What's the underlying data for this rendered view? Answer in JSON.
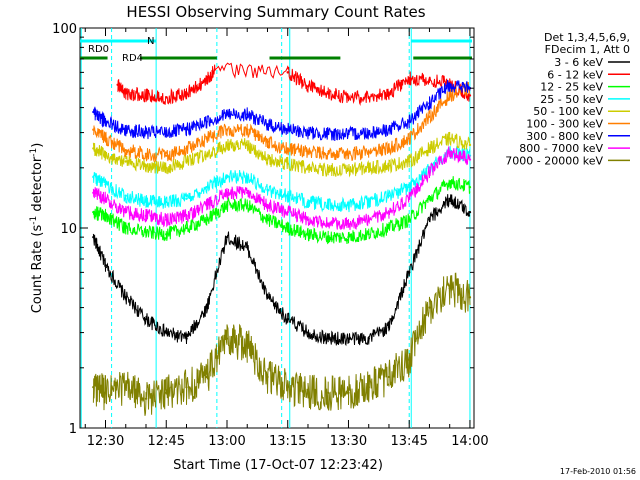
{
  "chart_data": {
    "type": "line",
    "title": "HESSI Observing Summary Count Rates",
    "xlabel": "Start Time (17-Oct-07 12:23:42)",
    "ylabel_main": "Count Rate (s",
    "ylabel_sup1": "-1",
    "ylabel_mid": " detector",
    "ylabel_sup2": "-1",
    "ylabel_end": ")",
    "y_scale": "log",
    "ylim": [
      1,
      100
    ],
    "xlim": [
      "12:23:42",
      "14:01:00"
    ],
    "x_ticks": [
      "12:30",
      "12:45",
      "13:00",
      "13:15",
      "13:30",
      "13:45",
      "14:00"
    ],
    "y_tick_labels": [
      "1",
      "10",
      "100"
    ],
    "timestamp": "17-Feb-2010 01:56",
    "legend": {
      "header_line1": "Det 1,3,4,5,6,9,",
      "header_line2": "FDecim 1, Att 0",
      "entries": [
        {
          "label": "3 - 6 keV",
          "color": "#000000"
        },
        {
          "label": "6 - 12 keV",
          "color": "#ff0000"
        },
        {
          "label": "12 - 25 keV",
          "color": "#00ff00"
        },
        {
          "label": "25 - 50 keV",
          "color": "#00ffff"
        },
        {
          "label": "50 - 100 keV",
          "color": "#cccc00"
        },
        {
          "label": "100 - 300 keV",
          "color": "#ff7f00"
        },
        {
          "label": "300 - 800 keV",
          "color": "#0000ff"
        },
        {
          "label": "800 - 7000 keV",
          "color": "#ff00ff"
        },
        {
          "label": "7000 - 20000 keV",
          "color": "#808000"
        }
      ]
    },
    "flags": [
      {
        "label": "RD0",
        "color": "#00ffff",
        "segments": [
          [
            "12:23:42",
            "12:42:30"
          ],
          [
            "13:45:30",
            "14:00:30"
          ]
        ]
      },
      {
        "label": "N",
        "color": "#00ffff",
        "segments": []
      },
      {
        "label": "RD4",
        "color": "#008000",
        "segments": [
          [
            "12:23:42",
            "12:30:30"
          ],
          [
            "12:38:30",
            "12:57:30"
          ],
          [
            "13:10:30",
            "13:28:00"
          ],
          [
            "13:46:00",
            "14:00:30"
          ]
        ]
      }
    ],
    "night_boundaries": [
      "12:24:00",
      "12:42:30",
      "13:15:30",
      "13:45:30",
      "14:00:00"
    ],
    "saa_markers": [
      "12:31:30",
      "12:57:30",
      "13:13:30",
      "13:45:00"
    ],
    "series": [
      {
        "name": "3 - 6 keV",
        "color": "#000000",
        "x": [
          "12:27:00",
          "12:30:00",
          "12:35:00",
          "12:40:00",
          "12:45:00",
          "12:50:00",
          "12:55:00",
          "13:00:00",
          "13:05:00",
          "13:10:00",
          "13:15:00",
          "13:20:00",
          "13:25:00",
          "13:30:00",
          "13:35:00",
          "13:40:00",
          "13:45:00",
          "13:50:00",
          "13:55:00",
          "14:00:00"
        ],
        "y": [
          9,
          6.5,
          4.5,
          3.5,
          3,
          2.8,
          4,
          9,
          8,
          4.5,
          3.5,
          3,
          2.8,
          2.8,
          2.8,
          3.2,
          6,
          11,
          14,
          12
        ]
      },
      {
        "name": "6 - 12 keV",
        "color": "#ff0000",
        "x": [
          "12:33:00",
          "12:35:00",
          "12:40:00",
          "12:45:00",
          "12:50:00",
          "12:55:00",
          "12:57:00",
          "13:15:00",
          "13:20:00",
          "13:25:00",
          "13:30:00",
          "13:35:00",
          "13:40:00",
          "13:45:00",
          "13:50:00",
          "13:55:00",
          "14:00:00"
        ],
        "y": [
          52,
          47,
          46,
          45,
          47,
          55,
          62,
          60,
          51,
          47,
          45,
          45,
          47,
          56,
          55,
          53,
          46
        ]
      },
      {
        "name": "12 - 25 keV",
        "color": "#00ff00",
        "x": [
          "12:27:00",
          "12:30:00",
          "12:35:00",
          "12:40:00",
          "12:45:00",
          "12:50:00",
          "12:55:00",
          "13:00:00",
          "13:05:00",
          "13:10:00",
          "13:15:00",
          "13:20:00",
          "13:25:00",
          "13:30:00",
          "13:35:00",
          "13:40:00",
          "13:45:00",
          "13:50:00",
          "13:55:00",
          "14:00:00"
        ],
        "y": [
          12,
          11.5,
          10,
          9.5,
          9.3,
          10,
          11,
          13,
          13,
          11,
          10,
          9.3,
          9,
          9,
          9.3,
          10,
          11,
          14,
          17,
          16
        ]
      },
      {
        "name": "25 - 50 keV",
        "color": "#00ffff",
        "x": [
          "12:27:00",
          "12:30:00",
          "12:35:00",
          "12:40:00",
          "12:45:00",
          "12:50:00",
          "12:55:00",
          "13:00:00",
          "13:05:00",
          "13:10:00",
          "13:15:00",
          "13:20:00",
          "13:25:00",
          "13:30:00",
          "13:35:00",
          "13:40:00",
          "13:45:00",
          "13:50:00",
          "13:55:00",
          "14:00:00"
        ],
        "y": [
          18,
          16.5,
          14.5,
          13.5,
          13.5,
          14,
          16,
          18,
          18,
          15.5,
          14.5,
          13.5,
          13,
          13,
          13.5,
          14.5,
          16,
          20,
          24,
          23
        ]
      },
      {
        "name": "50 - 100 keV",
        "color": "#cccc00",
        "x": [
          "12:27:00",
          "12:30:00",
          "12:35:00",
          "12:40:00",
          "12:45:00",
          "12:50:00",
          "12:55:00",
          "13:00:00",
          "13:05:00",
          "13:10:00",
          "13:15:00",
          "13:20:00",
          "13:25:00",
          "13:30:00",
          "13:35:00",
          "13:40:00",
          "13:45:00",
          "13:50:00",
          "13:55:00",
          "14:00:00"
        ],
        "y": [
          25,
          23,
          21.5,
          20.5,
          20,
          21.5,
          23,
          26,
          26,
          22,
          21,
          20,
          19.5,
          19.5,
          20,
          20.5,
          21.5,
          25,
          28,
          26
        ]
      },
      {
        "name": "100 - 300 keV",
        "color": "#ff7f00",
        "x": [
          "12:27:00",
          "12:30:00",
          "12:35:00",
          "12:40:00",
          "12:45:00",
          "12:50:00",
          "12:55:00",
          "13:00:00",
          "13:05:00",
          "13:10:00",
          "13:15:00",
          "13:20:00",
          "13:25:00",
          "13:30:00",
          "13:35:00",
          "13:40:00",
          "13:45:00",
          "13:50:00",
          "13:55:00",
          "14:00:00"
        ],
        "y": [
          31,
          28,
          24.5,
          23.5,
          23,
          25,
          28,
          31,
          31,
          27,
          25,
          24,
          23.5,
          23.5,
          24,
          25,
          28,
          36,
          46,
          50
        ]
      },
      {
        "name": "300 - 800 keV",
        "color": "#0000ff",
        "x": [
          "12:27:00",
          "12:30:00",
          "12:35:00",
          "12:40:00",
          "12:45:00",
          "12:50:00",
          "12:55:00",
          "13:00:00",
          "13:05:00",
          "13:10:00",
          "13:15:00",
          "13:20:00",
          "13:25:00",
          "13:30:00",
          "13:35:00",
          "13:40:00",
          "13:45:00",
          "13:50:00",
          "13:55:00",
          "14:00:00"
        ],
        "y": [
          38,
          34,
          31,
          30,
          30,
          31,
          34,
          37,
          37,
          33,
          31,
          30,
          29.5,
          29.5,
          30,
          31,
          34,
          42,
          52,
          50
        ]
      },
      {
        "name": "800 - 7000 keV",
        "color": "#ff00ff",
        "x": [
          "12:27:00",
          "12:30:00",
          "12:35:00",
          "12:40:00",
          "12:45:00",
          "12:50:00",
          "12:55:00",
          "13:00:00",
          "13:05:00",
          "13:10:00",
          "13:15:00",
          "13:20:00",
          "13:25:00",
          "13:30:00",
          "13:35:00",
          "13:40:00",
          "13:45:00",
          "13:50:00",
          "13:55:00",
          "14:00:00"
        ],
        "y": [
          15,
          14,
          12,
          11.5,
          11,
          11.5,
          13,
          15,
          15,
          13,
          12,
          11,
          10.5,
          10.5,
          11,
          12,
          14,
          19,
          24,
          22
        ]
      },
      {
        "name": "7000 - 20000 keV",
        "color": "#808000",
        "x": [
          "12:27:00",
          "12:30:00",
          "12:35:00",
          "12:40:00",
          "12:45:00",
          "12:50:00",
          "12:55:00",
          "13:00:00",
          "13:05:00",
          "13:10:00",
          "13:15:00",
          "13:20:00",
          "13:25:00",
          "13:30:00",
          "13:35:00",
          "13:40:00",
          "13:45:00",
          "13:50:00",
          "13:55:00",
          "14:00:00"
        ],
        "y": [
          1.6,
          1.5,
          1.6,
          1.4,
          1.5,
          1.6,
          1.8,
          2.8,
          2.6,
          1.8,
          1.6,
          1.5,
          1.5,
          1.5,
          1.6,
          1.8,
          2.2,
          4,
          5,
          4.5
        ]
      }
    ]
  }
}
